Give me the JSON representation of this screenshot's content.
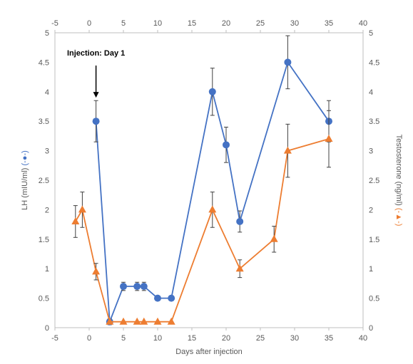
{
  "chart_data": {
    "type": "line",
    "title": "",
    "xlabel": "Days after injection",
    "ylabel_left": "LH (mIU/ml)",
    "ylabel_left_marker": "(-●-)",
    "ylabel_right": "Testosterone (ng/ml)",
    "ylabel_right_marker": "(-▲-)",
    "xlim": [
      -5,
      40
    ],
    "ylim_left": [
      0,
      5
    ],
    "ylim_right": [
      0,
      5
    ],
    "x_ticks": [
      "-5",
      "0",
      "5",
      "10",
      "15",
      "20",
      "25",
      "30",
      "35",
      "40"
    ],
    "x_tick_values": [
      -5,
      0,
      5,
      10,
      15,
      20,
      25,
      30,
      35,
      40
    ],
    "y_ticks": [
      "0",
      "0.5",
      "1",
      "1.5",
      "2",
      "2.5",
      "3",
      "3.5",
      "4",
      "4.5",
      "5"
    ],
    "y_tick_values": [
      0,
      0.5,
      1,
      1.5,
      2,
      2.5,
      3,
      3.5,
      4,
      4.5,
      5
    ],
    "grid": false,
    "legend": "none",
    "annotation": {
      "text": "Injection: Day 1",
      "x": 1,
      "arrow_to_y": 3.9
    },
    "series": [
      {
        "marker": "circle",
        "color": "#4472C4",
        "axis": "left",
        "x": [
          1,
          3,
          5,
          7,
          8,
          10,
          12,
          18,
          20,
          22,
          29,
          35
        ],
        "y": [
          3.5,
          0.1,
          0.7,
          0.7,
          0.7,
          0.5,
          0.5,
          4.0,
          3.1,
          1.8,
          4.5,
          3.5
        ],
        "err": [
          0.35,
          0.05,
          0.07,
          0.07,
          0.07,
          0,
          0,
          0.4,
          0.3,
          0.18,
          0.45,
          0.35
        ]
      },
      {
        "marker": "triangle",
        "color": "#ED7D31",
        "axis": "right",
        "x": [
          -2,
          -1,
          1,
          3,
          5,
          7,
          8,
          10,
          12,
          18,
          22,
          27,
          29,
          35
        ],
        "y": [
          1.8,
          2.0,
          0.95,
          0.1,
          0.1,
          0.1,
          0.1,
          0.1,
          0.1,
          2.0,
          1.0,
          1.5,
          3.0,
          3.2
        ],
        "err": [
          0.27,
          0.3,
          0.14,
          0,
          0,
          0,
          0,
          0,
          0,
          0.3,
          0.15,
          0.22,
          0.45,
          0.48
        ]
      }
    ]
  }
}
